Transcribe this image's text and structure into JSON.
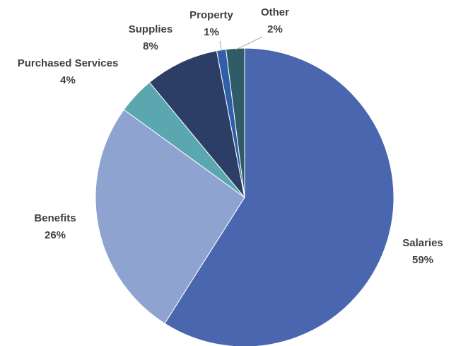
{
  "chart_data": {
    "type": "pie",
    "categories": [
      "Salaries",
      "Benefits",
      "Purchased Services",
      "Supplies",
      "Property",
      "Other"
    ],
    "values": [
      59,
      26,
      4,
      8,
      1,
      2
    ],
    "value_labels": [
      "59%",
      "26%",
      "4%",
      "8%",
      "1%",
      "2%"
    ],
    "colors": [
      "#4a66ae",
      "#8fa3d1",
      "#5aa7b0",
      "#2d3e66",
      "#2f5fa8",
      "#2f5c67"
    ],
    "start_angle_deg": 0,
    "direction": "clockwise",
    "title": "",
    "legend": "none"
  }
}
